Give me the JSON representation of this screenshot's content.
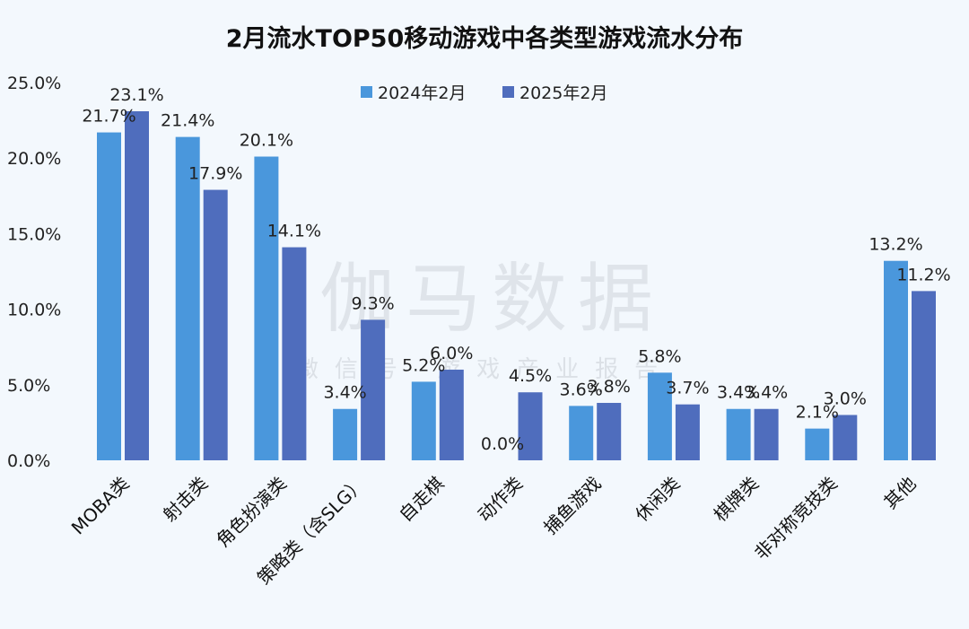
{
  "chart_data": {
    "type": "bar",
    "title": "2月流水TOP50移动游戏中各类型游戏流水分布",
    "categories": [
      "MOBA类",
      "射击类",
      "角色扮演类",
      "策略类（含SLG）",
      "自走棋",
      "动作类",
      "捕鱼游戏",
      "休闲类",
      "棋牌类",
      "非对称竞技类",
      "其他"
    ],
    "series": [
      {
        "name": "2024年2月",
        "color": "#4a97dc",
        "values": [
          21.7,
          21.4,
          20.1,
          3.4,
          5.2,
          0.0,
          3.6,
          5.8,
          3.4,
          2.1,
          13.2
        ],
        "labels": [
          "21.7%",
          "21.4%",
          "20.1%",
          "3.4%",
          "5.2%",
          "0.0%",
          "3.6%",
          "5.8%",
          "3.4%",
          "2.1%",
          "13.2%"
        ]
      },
      {
        "name": "2025年2月",
        "color": "#4f6dbd",
        "values": [
          23.1,
          17.9,
          14.1,
          9.3,
          6.0,
          4.5,
          3.8,
          3.7,
          3.4,
          3.0,
          11.2
        ],
        "labels": [
          "23.1%",
          "17.9%",
          "14.1%",
          "9.3%",
          "6.0%",
          "4.5%",
          "3.8%",
          "3.7%",
          "3.4%",
          "3.0%",
          "11.2%"
        ]
      }
    ],
    "ylim": [
      0,
      25
    ],
    "yticks": [
      0,
      5,
      10,
      15,
      20,
      25
    ],
    "ytick_labels": [
      "0.0%",
      "5.0%",
      "10.0%",
      "15.0%",
      "20.0%",
      "25.0%"
    ],
    "xlabel": "",
    "ylabel": "",
    "grid": false,
    "legend_position": "top-center"
  },
  "watermark": {
    "main": "伽马数据",
    "sub": "微信号 游戏产业报告"
  }
}
